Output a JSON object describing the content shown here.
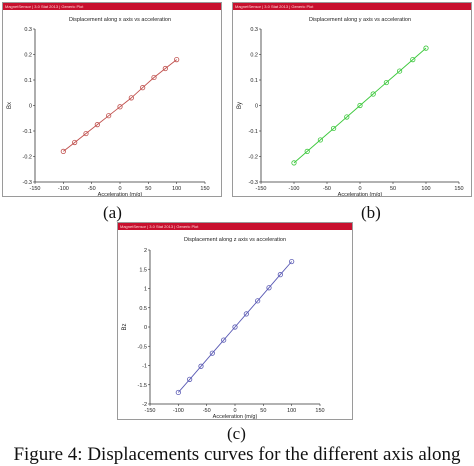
{
  "captions": [
    "(a)",
    "(b)",
    "(c)"
  ],
  "figure_caption": "Figure 4: Displacements curves for the different axis along",
  "charts": [
    {
      "window_title": "MagnetSensor | 3.0 Stat 2013 | Generic Plot",
      "color": "#c0504d"
    },
    {
      "window_title": "MagnetSensor | 3.0 Stat 2013 | Generic Plot",
      "color": "#3cc83c"
    },
    {
      "window_title": "MagnetSensor | 3.0 Stat 2013 | Generic Plot",
      "color": "#5a5ab4"
    }
  ],
  "chart_data": [
    {
      "type": "line",
      "title": "Displacement along x axis vs acceleration",
      "xlabel": "Acceleration (m/g)",
      "ylabel": "Bx",
      "xlim": [
        -150,
        150
      ],
      "ylim": [
        -0.3,
        0.3
      ],
      "xticks": [
        "-150",
        "-100",
        "-50",
        "0",
        "50",
        "100",
        "150"
      ],
      "yticks": [
        "-0.3",
        "-0.2",
        "-0.1",
        "0",
        "0.1",
        "0.2",
        "0.3"
      ],
      "grid": false,
      "series": [
        {
          "x": [
            -100,
            -80,
            -60,
            -40,
            -20,
            0,
            20,
            40,
            60,
            80,
            100
          ],
          "y": [
            -0.18,
            -0.145,
            -0.11,
            -0.075,
            -0.04,
            -0.005,
            0.03,
            0.07,
            0.11,
            0.145,
            0.18
          ]
        }
      ]
    },
    {
      "type": "line",
      "title": "Displacement along y axis vs acceleration",
      "xlabel": "Acceleration (m/g)",
      "ylabel": "By",
      "xlim": [
        -150,
        150
      ],
      "ylim": [
        -0.3,
        0.3
      ],
      "xticks": [
        "-150",
        "-100",
        "-50",
        "0",
        "50",
        "100",
        "150"
      ],
      "yticks": [
        "-0.3",
        "-0.2",
        "-0.1",
        "0",
        "0.1",
        "0.2",
        "0.3"
      ],
      "grid": false,
      "series": [
        {
          "x": [
            -100,
            -80,
            -60,
            -40,
            -20,
            0,
            20,
            40,
            60,
            80,
            100
          ],
          "y": [
            -0.225,
            -0.18,
            -0.135,
            -0.09,
            -0.045,
            0.0,
            0.045,
            0.09,
            0.135,
            0.18,
            0.225
          ]
        }
      ]
    },
    {
      "type": "line",
      "title": "Displacement along z axis vs acceleration",
      "xlabel": "Acceleration (m/g)",
      "ylabel": "Bz",
      "xlim": [
        -150,
        150
      ],
      "ylim": [
        -2,
        2
      ],
      "xticks": [
        "-150",
        "-100",
        "-50",
        "0",
        "50",
        "100",
        "150"
      ],
      "yticks": [
        "-2",
        "-1.5",
        "-1",
        "-0.5",
        "0",
        "0.5",
        "1",
        "1.5",
        "2"
      ],
      "grid": false,
      "series": [
        {
          "x": [
            -100,
            -80,
            -60,
            -40,
            -20,
            0,
            20,
            40,
            60,
            80,
            100
          ],
          "y": [
            -1.7,
            -1.36,
            -1.02,
            -0.68,
            -0.34,
            0.0,
            0.34,
            0.68,
            1.02,
            1.36,
            1.7
          ]
        }
      ]
    }
  ]
}
